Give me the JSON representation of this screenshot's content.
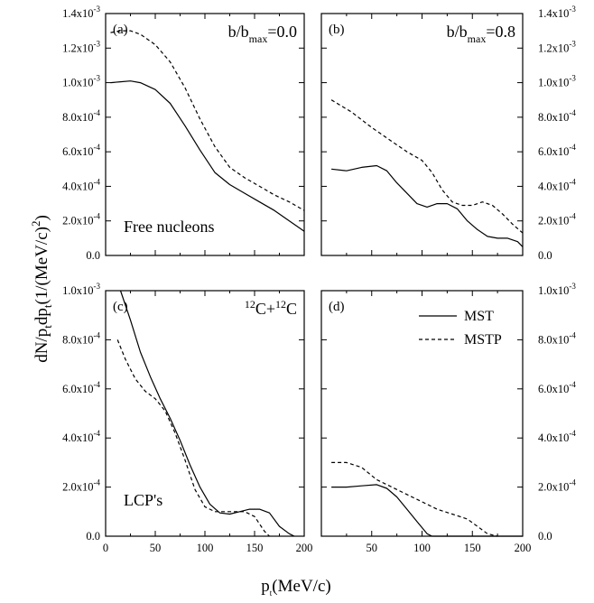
{
  "chart_data": [
    {
      "type": "line",
      "panel_label": "(a)",
      "corner_text": {
        "main": "b/b",
        "sub": "max",
        "tail": "=0.0"
      },
      "annotation": "Free nucleons",
      "xlim": [
        0,
        200
      ],
      "ylim": [
        0,
        0.0014
      ],
      "y_ticks": [
        {
          "mant": "0.0",
          "exp": ""
        },
        {
          "mant": "2.0x10",
          "exp": "-4"
        },
        {
          "mant": "4.0x10",
          "exp": "-4"
        },
        {
          "mant": "6.0x10",
          "exp": "-4"
        },
        {
          "mant": "8.0x10",
          "exp": "-4"
        },
        {
          "mant": "1.0x10",
          "exp": "-3"
        },
        {
          "mant": "1.2x10",
          "exp": "-3"
        },
        {
          "mant": "1.4x10",
          "exp": "-3"
        }
      ],
      "series": [
        {
          "style": "solid",
          "x": [
            5,
            15,
            25,
            35,
            50,
            65,
            80,
            95,
            110,
            125,
            140,
            155,
            170,
            185,
            200
          ],
          "y": [
            0.001,
            0.001005,
            0.00101,
            0.001,
            0.00096,
            0.00088,
            0.00075,
            0.00061,
            0.00048,
            0.00041,
            0.00036,
            0.00031,
            0.00026,
            0.0002,
            0.00014
          ]
        },
        {
          "style": "dashed",
          "x": [
            5,
            15,
            25,
            35,
            50,
            65,
            80,
            95,
            110,
            125,
            140,
            155,
            170,
            185,
            200
          ],
          "y": [
            0.00129,
            0.0013,
            0.0013,
            0.00128,
            0.00122,
            0.00112,
            0.00097,
            0.00079,
            0.00063,
            0.00051,
            0.00045,
            0.0004,
            0.00035,
            0.00031,
            0.00026
          ]
        }
      ]
    },
    {
      "type": "line",
      "panel_label": "(b)",
      "corner_text": {
        "main": "b/b",
        "sub": "max",
        "tail": "=0.8"
      },
      "xlim": [
        0,
        200
      ],
      "ylim": [
        0,
        0.0014
      ],
      "y_ticks": [
        {
          "mant": "0.0",
          "exp": ""
        },
        {
          "mant": "2.0x10",
          "exp": "-4"
        },
        {
          "mant": "4.0x10",
          "exp": "-4"
        },
        {
          "mant": "6.0x10",
          "exp": "-4"
        },
        {
          "mant": "8.0x10",
          "exp": "-4"
        },
        {
          "mant": "1.0x10",
          "exp": "-3"
        },
        {
          "mant": "1.2x10",
          "exp": "-3"
        },
        {
          "mant": "1.4x10",
          "exp": "-3"
        }
      ],
      "series": [
        {
          "style": "solid",
          "x": [
            10,
            25,
            40,
            55,
            65,
            75,
            85,
            95,
            105,
            115,
            125,
            135,
            145,
            155,
            165,
            175,
            185,
            195,
            200
          ],
          "y": [
            0.0005,
            0.00049,
            0.00051,
            0.00052,
            0.00049,
            0.00042,
            0.00036,
            0.0003,
            0.00028,
            0.0003,
            0.0003,
            0.00027,
            0.0002,
            0.00015,
            0.00011,
            0.0001,
            0.0001,
            8e-05,
            5e-05
          ]
        },
        {
          "style": "dashed",
          "x": [
            10,
            30,
            50,
            70,
            85,
            100,
            110,
            120,
            130,
            140,
            150,
            160,
            170,
            180,
            190,
            200
          ],
          "y": [
            0.0009,
            0.00083,
            0.00074,
            0.00066,
            0.0006,
            0.00055,
            0.00048,
            0.00038,
            0.00031,
            0.00029,
            0.00029,
            0.00031,
            0.00029,
            0.00024,
            0.00018,
            0.00013
          ]
        }
      ]
    },
    {
      "type": "line",
      "panel_label": "(c)",
      "corner_text": {
        "pre": "12",
        "main": "C+",
        "sup2": "12",
        "tail": "C"
      },
      "annotation": "LCP's",
      "xlim": [
        0,
        200
      ],
      "ylim": [
        0,
        0.001
      ],
      "x_ticks": [
        "0",
        "50",
        "100",
        "150",
        "200"
      ],
      "y_ticks": [
        {
          "mant": "0.0",
          "exp": ""
        },
        {
          "mant": "2.0x10",
          "exp": "-4"
        },
        {
          "mant": "4.0x10",
          "exp": "-4"
        },
        {
          "mant": "6.0x10",
          "exp": "-4"
        },
        {
          "mant": "8.0x10",
          "exp": "-4"
        },
        {
          "mant": "1.0x10",
          "exp": "-3"
        }
      ],
      "series": [
        {
          "style": "solid",
          "x": [
            15,
            25,
            35,
            45,
            55,
            65,
            75,
            85,
            95,
            105,
            115,
            125,
            135,
            145,
            155,
            165,
            175,
            185,
            190
          ],
          "y": [
            0.001,
            0.00088,
            0.00075,
            0.00065,
            0.00056,
            0.00048,
            0.00039,
            0.00029,
            0.0002,
            0.00013,
            9.5e-05,
            9e-05,
            0.0001,
            0.00011,
            0.00011,
            9.5e-05,
            4e-05,
            1e-05,
            0
          ]
        },
        {
          "style": "dashed",
          "x": [
            12,
            20,
            30,
            40,
            50,
            60,
            70,
            80,
            90,
            100,
            110,
            120,
            130,
            140,
            150,
            160,
            165
          ],
          "y": [
            0.0008,
            0.00072,
            0.00064,
            0.00059,
            0.00056,
            0.00051,
            0.00042,
            0.00031,
            0.00019,
            0.00012,
            0.0001,
            0.0001,
            0.0001,
            0.0001,
            8e-05,
            2e-05,
            0
          ]
        }
      ]
    },
    {
      "type": "line",
      "panel_label": "(d)",
      "legend": [
        {
          "label": "MST",
          "style": "solid"
        },
        {
          "label": "MSTP",
          "style": "dashed"
        }
      ],
      "xlim": [
        0,
        200
      ],
      "ylim": [
        0,
        0.001
      ],
      "x_ticks": [
        "50",
        "100",
        "150",
        "200"
      ],
      "y_ticks": [
        {
          "mant": "0.0",
          "exp": ""
        },
        {
          "mant": "2.0x10",
          "exp": "-4"
        },
        {
          "mant": "4.0x10",
          "exp": "-4"
        },
        {
          "mant": "6.0x10",
          "exp": "-4"
        },
        {
          "mant": "8.0x10",
          "exp": "-4"
        },
        {
          "mant": "1.0x10",
          "exp": "-3"
        }
      ],
      "series": [
        {
          "style": "solid",
          "x": [
            10,
            25,
            40,
            55,
            65,
            75,
            85,
            95,
            105,
            110,
            150,
            200
          ],
          "y": [
            0.0002,
            0.0002,
            0.000205,
            0.00021,
            0.000195,
            0.00016,
            0.00011,
            6e-05,
            1e-05,
            0,
            0,
            0
          ]
        },
        {
          "style": "dashed",
          "x": [
            10,
            25,
            40,
            55,
            70,
            85,
            100,
            115,
            130,
            145,
            155,
            165,
            175
          ],
          "y": [
            0.0003,
            0.0003,
            0.00028,
            0.00023,
            0.0002,
            0.00017,
            0.00014,
            0.00011,
            9e-05,
            7e-05,
            4e-05,
            1e-05,
            0
          ]
        }
      ]
    }
  ],
  "axes": {
    "x_title": {
      "main": "p",
      "sub": "t",
      "tail": "(MeV/c)"
    },
    "y_title": {
      "a": "dN/p",
      "a_sub": "t",
      "b": "dp",
      "b_sub": "t",
      "c": "(1/(MeV/c)",
      "c_sup": "2",
      "d": ")"
    }
  },
  "colors": {
    "line": "#000000",
    "background": "#ffffff"
  }
}
